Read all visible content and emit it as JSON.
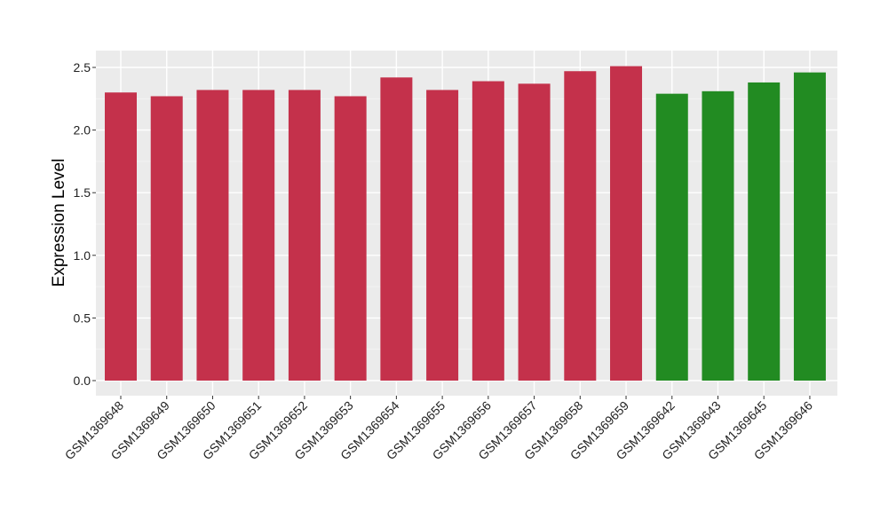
{
  "chart_data": {
    "type": "bar",
    "title": "",
    "xlabel": "",
    "ylabel": "Expression Level",
    "ylim": [
      0,
      2.62
    ],
    "yticks": [
      "0.0",
      "0.5",
      "1.0",
      "1.5",
      "2.0",
      "2.5"
    ],
    "grid": true,
    "categories": [
      "GSM1369648",
      "GSM1369649",
      "GSM1369650",
      "GSM1369651",
      "GSM1369652",
      "GSM1369653",
      "GSM1369654",
      "GSM1369655",
      "GSM1369656",
      "GSM1369657",
      "GSM1369658",
      "GSM1369659",
      "GSM1369642",
      "GSM1369643",
      "GSM1369645",
      "GSM1369646"
    ],
    "values": [
      2.3,
      2.27,
      2.32,
      2.32,
      2.32,
      2.27,
      2.42,
      2.32,
      2.39,
      2.37,
      2.47,
      2.51,
      2.29,
      2.31,
      2.38,
      2.46
    ],
    "colors": [
      "#c4314b",
      "#c4314b",
      "#c4314b",
      "#c4314b",
      "#c4314b",
      "#c4314b",
      "#c4314b",
      "#c4314b",
      "#c4314b",
      "#c4314b",
      "#c4314b",
      "#c4314b",
      "#228b22",
      "#228b22",
      "#228b22",
      "#228b22"
    ]
  }
}
